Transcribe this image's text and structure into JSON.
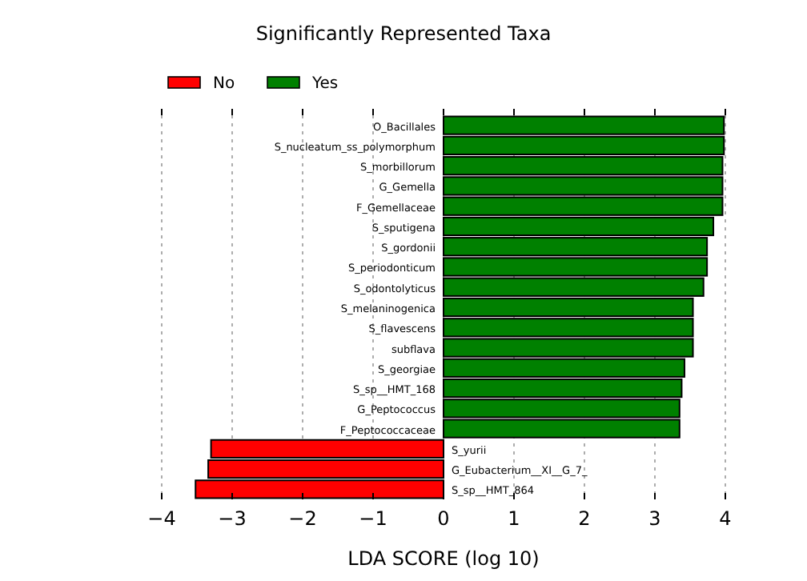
{
  "chart_data": {
    "type": "bar",
    "orientation": "horizontal",
    "title": "Significantly Represented Taxa",
    "xlabel": "LDA SCORE (log 10)",
    "categories": [
      "O_Bacillales",
      "S_nucleatum_ss_polymorphum",
      "S_morbillorum",
      "G_Gemella",
      "F_Gemellaceae",
      "S_sputigena",
      "S_gordonii",
      "S_periodonticum",
      "S_odontolyticus",
      "S_melaninogenica",
      "S_flavescens",
      "subflava",
      "S_georgiae",
      "S_sp__HMT_168",
      "G_Peptococcus",
      "F_Peptococcaceae",
      "S_yurii",
      "G_Eubacterium__XI__G_7_",
      "S_sp__HMT_864"
    ],
    "series": [
      {
        "name": "No",
        "color": "#ff0000",
        "values": [
          null,
          null,
          null,
          null,
          null,
          null,
          null,
          null,
          null,
          null,
          null,
          null,
          null,
          null,
          null,
          null,
          -3.3,
          -3.34,
          -3.52
        ]
      },
      {
        "name": "Yes",
        "color": "#008000",
        "values": [
          3.98,
          3.98,
          3.96,
          3.96,
          3.96,
          3.83,
          3.74,
          3.74,
          3.69,
          3.54,
          3.54,
          3.54,
          3.42,
          3.38,
          3.35,
          3.35,
          null,
          null,
          null
        ]
      }
    ],
    "xlim": [
      -4,
      4
    ],
    "xticks": [
      {
        "value": -4,
        "label": "−4"
      },
      {
        "value": -3,
        "label": "−3"
      },
      {
        "value": -2,
        "label": "−2"
      },
      {
        "value": -1,
        "label": "−1"
      },
      0,
      1,
      2,
      3,
      4
    ],
    "grid": "x",
    "legend": "top"
  }
}
